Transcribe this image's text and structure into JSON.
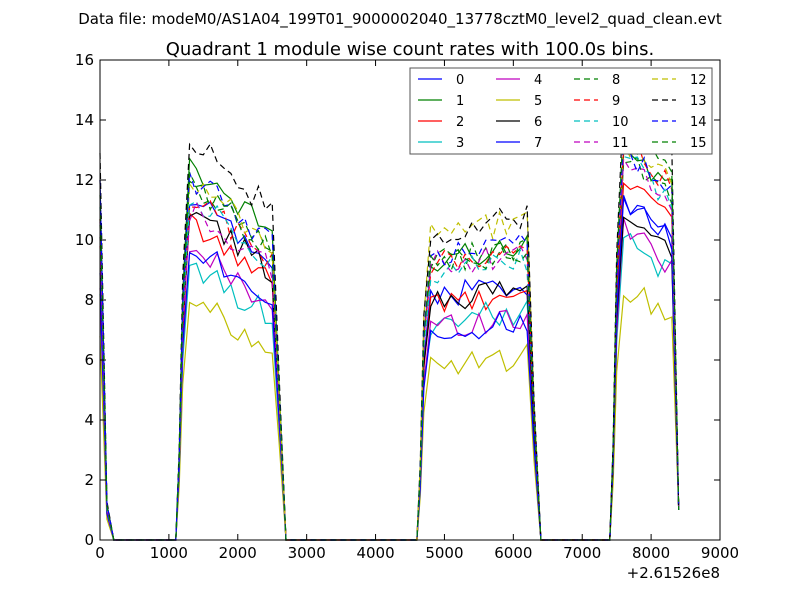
{
  "chart_data": {
    "type": "line",
    "suptitle": "Data file: modeM0/AS1A04_199T01_9000002040_13778cztM0_level2_quad_clean.evt",
    "title": "Quadrant 1 module wise count rates with 100.0s bins.",
    "xlabel": "",
    "ylabel": "",
    "xlim": [
      0,
      9000
    ],
    "ylim": [
      0,
      16
    ],
    "xticks": [
      0,
      1000,
      2000,
      3000,
      4000,
      5000,
      6000,
      7000,
      8000,
      9000
    ],
    "xtick_labels": [
      "0",
      "1000",
      "2000",
      "3000",
      "4000",
      "5000",
      "6000",
      "7000",
      "8000",
      "9000"
    ],
    "yticks": [
      0,
      2,
      4,
      6,
      8,
      10,
      12,
      14,
      16
    ],
    "ytick_labels": [
      "0",
      "2",
      "4",
      "6",
      "8",
      "10",
      "12",
      "14",
      "16"
    ],
    "x_offset_label": "+2.61526e8",
    "legend_position": "top-right",
    "legend_columns": 4,
    "segments": [
      {
        "start": 1200,
        "end": 2600
      },
      {
        "start": 4700,
        "end": 6300
      },
      {
        "start": 7500,
        "end": 8400
      }
    ],
    "series": [
      {
        "name": "0",
        "color": "#0000ff",
        "dash": false,
        "levels": [
          12.0,
          10.3,
          8.3,
          10.6
        ]
      },
      {
        "name": "1",
        "color": "#008000",
        "dash": false,
        "levels": [
          10.5,
          11.4,
          9.5,
          12.1
        ]
      },
      {
        "name": "2",
        "color": "#ff0000",
        "dash": false,
        "levels": [
          9.8,
          9.5,
          7.9,
          11.3
        ]
      },
      {
        "name": "3",
        "color": "#00bfbf",
        "dash": false,
        "levels": [
          8.2,
          8.3,
          7.4,
          9.2
        ]
      },
      {
        "name": "4",
        "color": "#bf00bf",
        "dash": false,
        "levels": [
          8.4,
          8.8,
          7.2,
          9.6
        ]
      },
      {
        "name": "5",
        "color": "#bfbf00",
        "dash": false,
        "levels": [
          6.8,
          7.2,
          5.9,
          7.8
        ]
      },
      {
        "name": "6",
        "color": "#000000",
        "dash": false,
        "levels": [
          10.1,
          10.0,
          8.1,
          10.2
        ]
      },
      {
        "name": "7",
        "color": "#0000ff",
        "dash": false,
        "levels": [
          8.9,
          9.0,
          7.0,
          10.5
        ]
      },
      {
        "name": "8",
        "color": "#008000",
        "dash": true,
        "levels": [
          10.7,
          10.9,
          9.4,
          11.9
        ]
      },
      {
        "name": "9",
        "color": "#ff0000",
        "dash": true,
        "levels": [
          10.7,
          10.4,
          9.3,
          12.3
        ]
      },
      {
        "name": "10",
        "color": "#00bfbf",
        "dash": true,
        "levels": [
          11.1,
          10.4,
          9.0,
          11.8
        ]
      },
      {
        "name": "11",
        "color": "#bf00bf",
        "dash": true,
        "levels": [
          10.6,
          10.0,
          9.3,
          11.8
        ]
      },
      {
        "name": "12",
        "color": "#bfbf00",
        "dash": true,
        "levels": [
          12.0,
          11.0,
          10.3,
          12.3
        ]
      },
      {
        "name": "13",
        "color": "#000000",
        "dash": true,
        "levels": [
          12.9,
          12.2,
          10.4,
          13.3
        ]
      },
      {
        "name": "14",
        "color": "#0000ff",
        "dash": true,
        "levels": [
          12.0,
          11.0,
          9.6,
          12.1
        ]
      },
      {
        "name": "15",
        "color": "#008000",
        "dash": true,
        "levels": [
          11.5,
          10.7,
          9.3,
          12.7
        ]
      }
    ]
  }
}
